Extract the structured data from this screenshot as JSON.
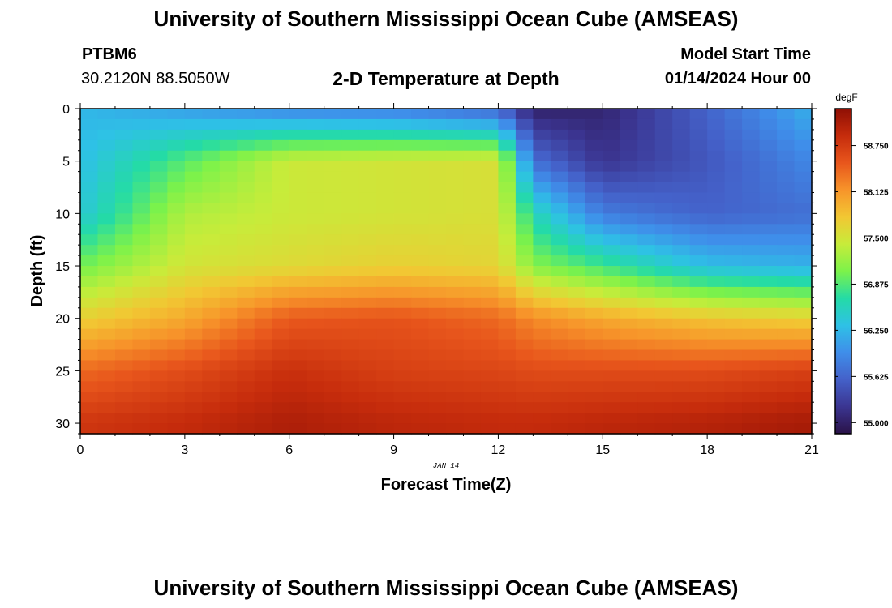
{
  "header": {
    "title": "University of Southern Mississippi Ocean Cube (AMSEAS)",
    "station_id": "PTBM6",
    "coordinates": "30.2120N  88.5050W",
    "chart_title": "2-D Temperature at Depth",
    "model_start_label": "Model Start Time",
    "model_start_value": "01/14/2024 Hour 00"
  },
  "footer": {
    "title": "University of Southern Mississippi Ocean Cube (AMSEAS)"
  },
  "chart_data": {
    "type": "heatmap",
    "xlabel": "Forecast Time(Z)",
    "ylabel": "Depth (ft)",
    "x_ticks": [
      "0",
      "3",
      "6",
      "9",
      "12",
      "15",
      "18",
      "21"
    ],
    "y_ticks": [
      "0",
      "5",
      "10",
      "15",
      "20",
      "25",
      "30"
    ],
    "date_label": "JAN 14",
    "xlim": [
      0,
      21
    ],
    "ylim": [
      0,
      31
    ],
    "colorbar": {
      "unit": "degF",
      "ticks": [
        "58.750",
        "58.125",
        "57.500",
        "56.875",
        "56.250",
        "55.625",
        "55.000"
      ],
      "range": [
        54.85,
        59.25
      ],
      "colors": [
        "#2a1248",
        "#3b3591",
        "#4461c9",
        "#3f8eea",
        "#2ec1e6",
        "#24dba6",
        "#7cf24a",
        "#c7ec3a",
        "#f2c733",
        "#f7942a",
        "#e8561c",
        "#c62c0c",
        "#8f0f04"
      ]
    },
    "description": "Temperature (degF) by depth (ft) and forecast time (hours Z). Colder water near the surface, warmest at depth.",
    "series_samples": {
      "time_hours": [
        0,
        3,
        6,
        9,
        12,
        13,
        15,
        18,
        21
      ],
      "depth_ft": [
        0,
        5,
        10,
        15,
        20,
        25,
        30
      ],
      "temperature_degF": [
        [
          56.25,
          56.05,
          55.85,
          55.8,
          55.6,
          55.0,
          55.05,
          55.6,
          56.2
        ],
        [
          56.3,
          56.9,
          57.45,
          57.5,
          57.55,
          55.7,
          55.2,
          55.5,
          55.9
        ],
        [
          56.4,
          57.3,
          57.45,
          57.5,
          57.55,
          56.6,
          55.8,
          55.6,
          55.7
        ],
        [
          57.0,
          57.5,
          57.6,
          57.7,
          57.65,
          57.1,
          56.8,
          56.3,
          56.2
        ],
        [
          57.7,
          58.0,
          58.5,
          58.55,
          58.4,
          58.2,
          58.0,
          57.8,
          57.7
        ],
        [
          58.4,
          58.6,
          58.85,
          58.7,
          58.65,
          58.6,
          58.6,
          58.6,
          58.7
        ],
        [
          58.8,
          58.9,
          59.05,
          58.95,
          58.9,
          58.9,
          58.95,
          59.0,
          59.1
        ]
      ]
    }
  }
}
